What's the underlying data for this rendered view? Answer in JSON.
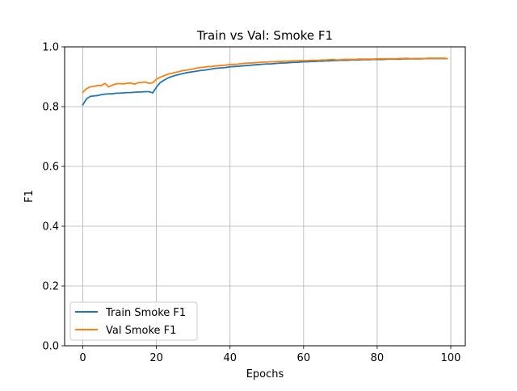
{
  "chart_data": {
    "type": "line",
    "title": "Train vs Val: Smoke F1",
    "xlabel": "Epochs",
    "ylabel": "F1",
    "xlim": [
      -4.95,
      103.95
    ],
    "ylim": [
      0.0,
      1.0
    ],
    "grid": true,
    "legend_position": "lower-left",
    "x_ticks": [
      0,
      20,
      40,
      60,
      80,
      100
    ],
    "y_ticks": [
      0.0,
      0.2,
      0.4,
      0.6,
      0.8,
      1.0
    ],
    "x_tick_labels": [
      "0",
      "20",
      "40",
      "60",
      "80",
      "100"
    ],
    "y_tick_labels": [
      "0.0",
      "0.2",
      "0.4",
      "0.6",
      "0.8",
      "1.0"
    ],
    "x": [
      0,
      1,
      2,
      3,
      4,
      5,
      6,
      7,
      8,
      9,
      10,
      11,
      12,
      13,
      14,
      15,
      16,
      17,
      18,
      19,
      20,
      21,
      22,
      23,
      24,
      25,
      26,
      27,
      28,
      29,
      30,
      31,
      32,
      33,
      34,
      35,
      36,
      37,
      38,
      39,
      40,
      41,
      42,
      43,
      44,
      45,
      46,
      47,
      48,
      49,
      50,
      51,
      52,
      53,
      54,
      55,
      56,
      57,
      58,
      59,
      60,
      61,
      62,
      63,
      64,
      65,
      66,
      67,
      68,
      69,
      70,
      71,
      72,
      73,
      74,
      75,
      76,
      77,
      78,
      79,
      80,
      81,
      82,
      83,
      84,
      85,
      86,
      87,
      88,
      89,
      90,
      91,
      92,
      93,
      94,
      95,
      96,
      97,
      98,
      99
    ],
    "series": [
      {
        "name": "Train Smoke F1",
        "color": "#1f77b4",
        "values": [
          0.806,
          0.826,
          0.834,
          0.836,
          0.837,
          0.84,
          0.842,
          0.843,
          0.843,
          0.845,
          0.845,
          0.846,
          0.847,
          0.847,
          0.848,
          0.849,
          0.849,
          0.85,
          0.85,
          0.846,
          0.865,
          0.88,
          0.888,
          0.895,
          0.9,
          0.904,
          0.907,
          0.91,
          0.913,
          0.915,
          0.917,
          0.919,
          0.921,
          0.922,
          0.924,
          0.926,
          0.928,
          0.929,
          0.93,
          0.931,
          0.933,
          0.934,
          0.935,
          0.936,
          0.937,
          0.938,
          0.939,
          0.94,
          0.941,
          0.942,
          0.943,
          0.943,
          0.944,
          0.945,
          0.946,
          0.946,
          0.947,
          0.948,
          0.948,
          0.949,
          0.95,
          0.95,
          0.951,
          0.951,
          0.952,
          0.952,
          0.953,
          0.953,
          0.954,
          0.954,
          0.955,
          0.955,
          0.955,
          0.956,
          0.956,
          0.956,
          0.957,
          0.957,
          0.957,
          0.958,
          0.958,
          0.958,
          0.958,
          0.959,
          0.959,
          0.959,
          0.959,
          0.96,
          0.96,
          0.96,
          0.96,
          0.96,
          0.96,
          0.961,
          0.961,
          0.961,
          0.961,
          0.961,
          0.961,
          0.961
        ]
      },
      {
        "name": "Val Smoke F1",
        "color": "#ff7f0e",
        "values": [
          0.848,
          0.86,
          0.866,
          0.868,
          0.871,
          0.87,
          0.878,
          0.866,
          0.872,
          0.876,
          0.877,
          0.876,
          0.878,
          0.879,
          0.875,
          0.88,
          0.881,
          0.882,
          0.878,
          0.88,
          0.892,
          0.898,
          0.903,
          0.908,
          0.911,
          0.914,
          0.917,
          0.92,
          0.922,
          0.924,
          0.926,
          0.929,
          0.931,
          0.932,
          0.934,
          0.934,
          0.936,
          0.937,
          0.938,
          0.939,
          0.941,
          0.941,
          0.942,
          0.944,
          0.945,
          0.946,
          0.946,
          0.947,
          0.948,
          0.949,
          0.949,
          0.95,
          0.95,
          0.951,
          0.951,
          0.952,
          0.952,
          0.953,
          0.953,
          0.954,
          0.954,
          0.954,
          0.955,
          0.955,
          0.955,
          0.956,
          0.956,
          0.957,
          0.958,
          0.956,
          0.957,
          0.958,
          0.958,
          0.958,
          0.958,
          0.959,
          0.959,
          0.959,
          0.959,
          0.959,
          0.96,
          0.96,
          0.96,
          0.96,
          0.96,
          0.96,
          0.961,
          0.961,
          0.962,
          0.96,
          0.961,
          0.961,
          0.961,
          0.961,
          0.962,
          0.962,
          0.962,
          0.962,
          0.962,
          0.961
        ]
      }
    ]
  }
}
